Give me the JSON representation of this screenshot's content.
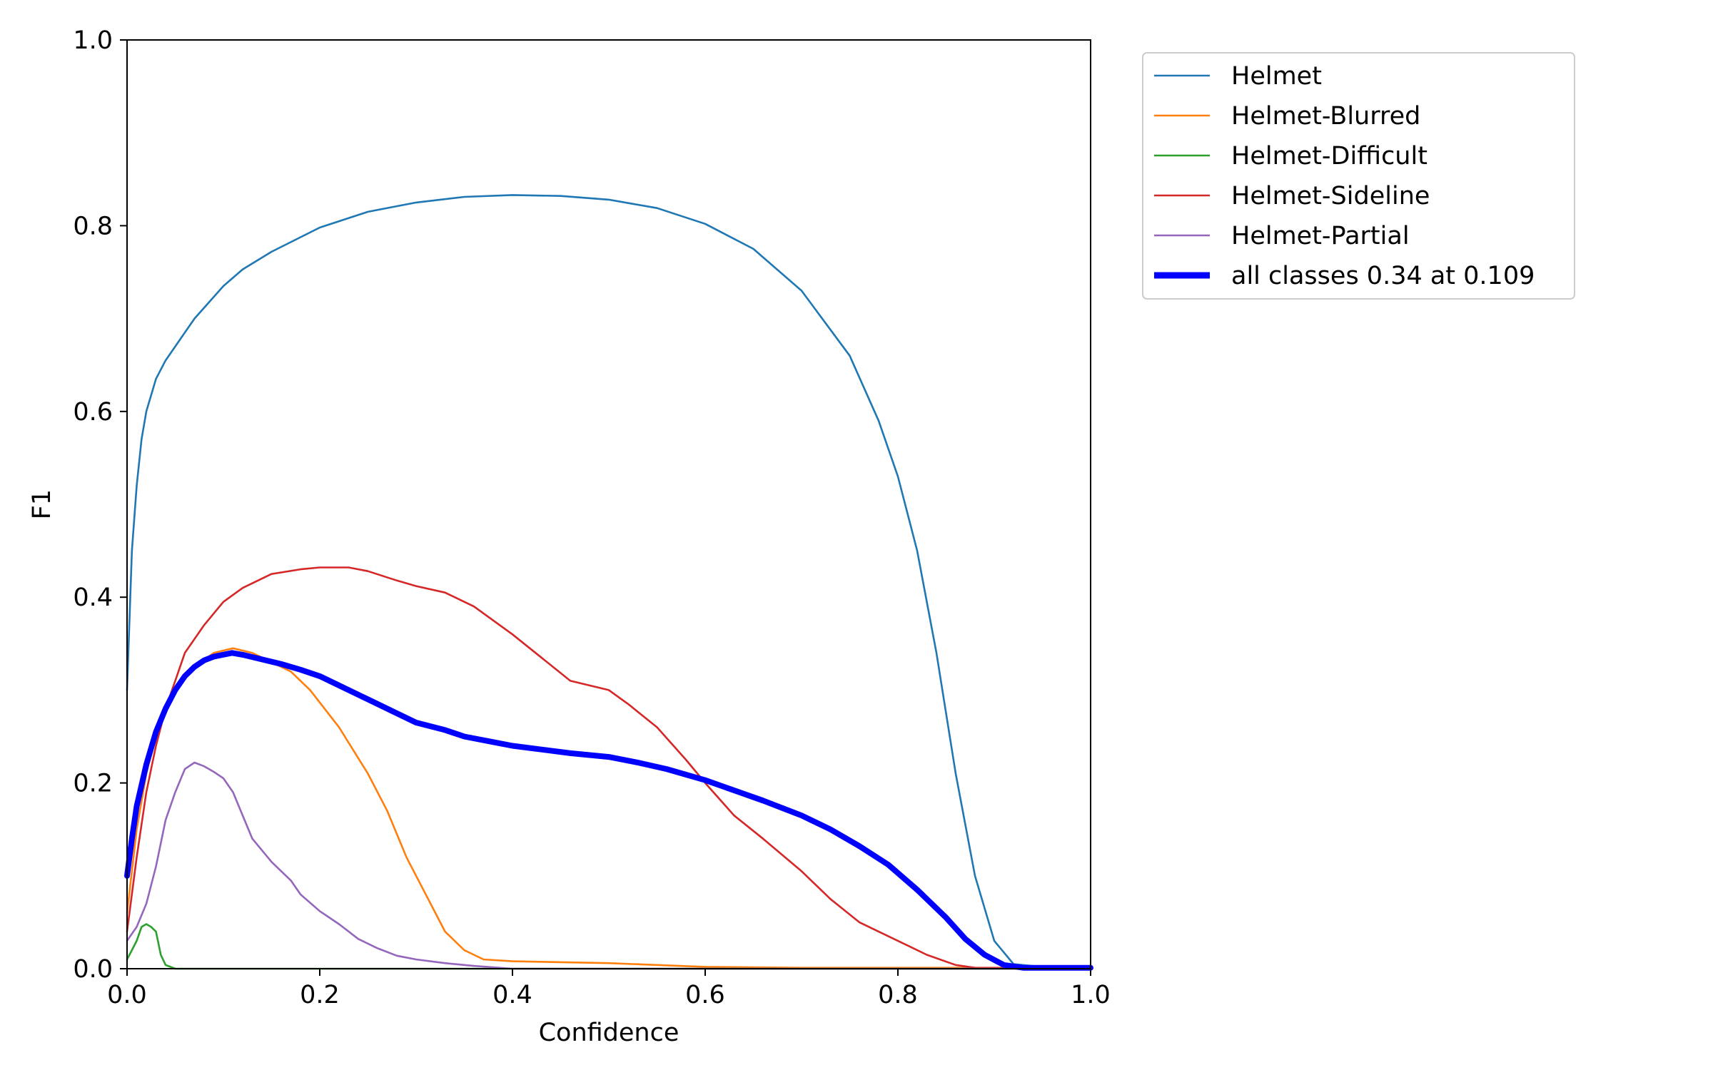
{
  "chart_data": {
    "type": "line",
    "title": "",
    "xlabel": "Confidence",
    "ylabel": "F1",
    "xlim": [
      0.0,
      1.0
    ],
    "ylim": [
      0.0,
      1.0
    ],
    "xticks": [
      "0.0",
      "0.2",
      "0.4",
      "0.6",
      "0.8",
      "1.0"
    ],
    "yticks": [
      "0.0",
      "0.2",
      "0.4",
      "0.6",
      "0.8",
      "1.0"
    ],
    "grid": false,
    "legend_position": "outside-top-right",
    "series": [
      {
        "name": "Helmet",
        "color": "#1f77b4",
        "emphasis": false,
        "points": [
          [
            0.0,
            0.3
          ],
          [
            0.002,
            0.36
          ],
          [
            0.005,
            0.45
          ],
          [
            0.01,
            0.52
          ],
          [
            0.015,
            0.57
          ],
          [
            0.02,
            0.6
          ],
          [
            0.03,
            0.635
          ],
          [
            0.04,
            0.655
          ],
          [
            0.05,
            0.67
          ],
          [
            0.07,
            0.7
          ],
          [
            0.1,
            0.735
          ],
          [
            0.12,
            0.753
          ],
          [
            0.15,
            0.772
          ],
          [
            0.2,
            0.798
          ],
          [
            0.25,
            0.815
          ],
          [
            0.3,
            0.825
          ],
          [
            0.35,
            0.831
          ],
          [
            0.4,
            0.833
          ],
          [
            0.45,
            0.832
          ],
          [
            0.5,
            0.828
          ],
          [
            0.55,
            0.819
          ],
          [
            0.6,
            0.802
          ],
          [
            0.65,
            0.775
          ],
          [
            0.7,
            0.73
          ],
          [
            0.75,
            0.66
          ],
          [
            0.78,
            0.59
          ],
          [
            0.8,
            0.53
          ],
          [
            0.82,
            0.45
          ],
          [
            0.84,
            0.34
          ],
          [
            0.86,
            0.21
          ],
          [
            0.88,
            0.1
          ],
          [
            0.9,
            0.03
          ],
          [
            0.92,
            0.005
          ],
          [
            0.95,
            0.002
          ],
          [
            1.0,
            0.002
          ]
        ]
      },
      {
        "name": "Helmet-Blurred",
        "color": "#ff7f0e",
        "emphasis": false,
        "points": [
          [
            0.0,
            0.06
          ],
          [
            0.01,
            0.15
          ],
          [
            0.02,
            0.21
          ],
          [
            0.03,
            0.25
          ],
          [
            0.04,
            0.28
          ],
          [
            0.05,
            0.3
          ],
          [
            0.07,
            0.325
          ],
          [
            0.09,
            0.34
          ],
          [
            0.11,
            0.345
          ],
          [
            0.13,
            0.34
          ],
          [
            0.15,
            0.33
          ],
          [
            0.17,
            0.32
          ],
          [
            0.19,
            0.3
          ],
          [
            0.22,
            0.26
          ],
          [
            0.25,
            0.21
          ],
          [
            0.27,
            0.17
          ],
          [
            0.29,
            0.12
          ],
          [
            0.31,
            0.08
          ],
          [
            0.33,
            0.04
          ],
          [
            0.35,
            0.02
          ],
          [
            0.37,
            0.01
          ],
          [
            0.4,
            0.008
          ],
          [
            0.5,
            0.006
          ],
          [
            0.6,
            0.002
          ],
          [
            0.7,
            0.001
          ],
          [
            1.0,
            0.001
          ]
        ]
      },
      {
        "name": "Helmet-Difficult",
        "color": "#2ca02c",
        "emphasis": false,
        "points": [
          [
            0.0,
            0.01
          ],
          [
            0.005,
            0.02
          ],
          [
            0.01,
            0.03
          ],
          [
            0.015,
            0.045
          ],
          [
            0.02,
            0.048
          ],
          [
            0.025,
            0.045
          ],
          [
            0.03,
            0.04
          ],
          [
            0.035,
            0.015
          ],
          [
            0.04,
            0.004
          ],
          [
            0.045,
            0.002
          ],
          [
            0.05,
            0.0
          ],
          [
            1.0,
            0.0
          ]
        ]
      },
      {
        "name": "Helmet-Sideline",
        "color": "#d62728",
        "emphasis": false,
        "points": [
          [
            0.0,
            0.04
          ],
          [
            0.01,
            0.12
          ],
          [
            0.02,
            0.19
          ],
          [
            0.03,
            0.24
          ],
          [
            0.04,
            0.28
          ],
          [
            0.05,
            0.31
          ],
          [
            0.06,
            0.34
          ],
          [
            0.08,
            0.37
          ],
          [
            0.1,
            0.395
          ],
          [
            0.12,
            0.41
          ],
          [
            0.15,
            0.425
          ],
          [
            0.18,
            0.43
          ],
          [
            0.2,
            0.432
          ],
          [
            0.23,
            0.432
          ],
          [
            0.25,
            0.428
          ],
          [
            0.28,
            0.418
          ],
          [
            0.3,
            0.412
          ],
          [
            0.33,
            0.405
          ],
          [
            0.36,
            0.39
          ],
          [
            0.4,
            0.36
          ],
          [
            0.43,
            0.335
          ],
          [
            0.46,
            0.31
          ],
          [
            0.5,
            0.3
          ],
          [
            0.52,
            0.285
          ],
          [
            0.55,
            0.26
          ],
          [
            0.58,
            0.225
          ],
          [
            0.6,
            0.2
          ],
          [
            0.63,
            0.165
          ],
          [
            0.66,
            0.14
          ],
          [
            0.7,
            0.105
          ],
          [
            0.73,
            0.075
          ],
          [
            0.76,
            0.05
          ],
          [
            0.8,
            0.03
          ],
          [
            0.83,
            0.015
          ],
          [
            0.86,
            0.004
          ],
          [
            0.88,
            0.001
          ],
          [
            1.0,
            0.0
          ]
        ]
      },
      {
        "name": "Helmet-Partial",
        "color": "#9467bd",
        "emphasis": false,
        "points": [
          [
            0.0,
            0.03
          ],
          [
            0.01,
            0.045
          ],
          [
            0.02,
            0.07
          ],
          [
            0.03,
            0.11
          ],
          [
            0.04,
            0.16
          ],
          [
            0.05,
            0.19
          ],
          [
            0.06,
            0.215
          ],
          [
            0.07,
            0.222
          ],
          [
            0.08,
            0.218
          ],
          [
            0.09,
            0.212
          ],
          [
            0.1,
            0.205
          ],
          [
            0.11,
            0.19
          ],
          [
            0.12,
            0.165
          ],
          [
            0.13,
            0.14
          ],
          [
            0.15,
            0.115
          ],
          [
            0.17,
            0.095
          ],
          [
            0.18,
            0.08
          ],
          [
            0.2,
            0.062
          ],
          [
            0.22,
            0.048
          ],
          [
            0.24,
            0.032
          ],
          [
            0.26,
            0.022
          ],
          [
            0.28,
            0.014
          ],
          [
            0.3,
            0.01
          ],
          [
            0.33,
            0.006
          ],
          [
            0.36,
            0.003
          ],
          [
            0.4,
            0.0
          ],
          [
            1.0,
            0.0
          ]
        ]
      },
      {
        "name": "all classes 0.34 at 0.109",
        "color": "#0000ff",
        "emphasis": true,
        "points": [
          [
            0.0,
            0.1
          ],
          [
            0.005,
            0.14
          ],
          [
            0.01,
            0.175
          ],
          [
            0.02,
            0.22
          ],
          [
            0.03,
            0.255
          ],
          [
            0.04,
            0.28
          ],
          [
            0.05,
            0.3
          ],
          [
            0.06,
            0.315
          ],
          [
            0.07,
            0.325
          ],
          [
            0.08,
            0.332
          ],
          [
            0.09,
            0.336
          ],
          [
            0.109,
            0.34
          ],
          [
            0.12,
            0.338
          ],
          [
            0.14,
            0.333
          ],
          [
            0.16,
            0.328
          ],
          [
            0.18,
            0.322
          ],
          [
            0.2,
            0.315
          ],
          [
            0.22,
            0.305
          ],
          [
            0.25,
            0.29
          ],
          [
            0.28,
            0.275
          ],
          [
            0.3,
            0.265
          ],
          [
            0.33,
            0.257
          ],
          [
            0.35,
            0.25
          ],
          [
            0.38,
            0.244
          ],
          [
            0.4,
            0.24
          ],
          [
            0.43,
            0.236
          ],
          [
            0.46,
            0.232
          ],
          [
            0.5,
            0.228
          ],
          [
            0.53,
            0.222
          ],
          [
            0.56,
            0.215
          ],
          [
            0.6,
            0.203
          ],
          [
            0.63,
            0.192
          ],
          [
            0.66,
            0.181
          ],
          [
            0.7,
            0.165
          ],
          [
            0.73,
            0.15
          ],
          [
            0.76,
            0.132
          ],
          [
            0.79,
            0.112
          ],
          [
            0.82,
            0.085
          ],
          [
            0.85,
            0.055
          ],
          [
            0.87,
            0.032
          ],
          [
            0.89,
            0.015
          ],
          [
            0.91,
            0.004
          ],
          [
            0.93,
            0.001
          ],
          [
            1.0,
            0.001
          ]
        ]
      }
    ]
  }
}
